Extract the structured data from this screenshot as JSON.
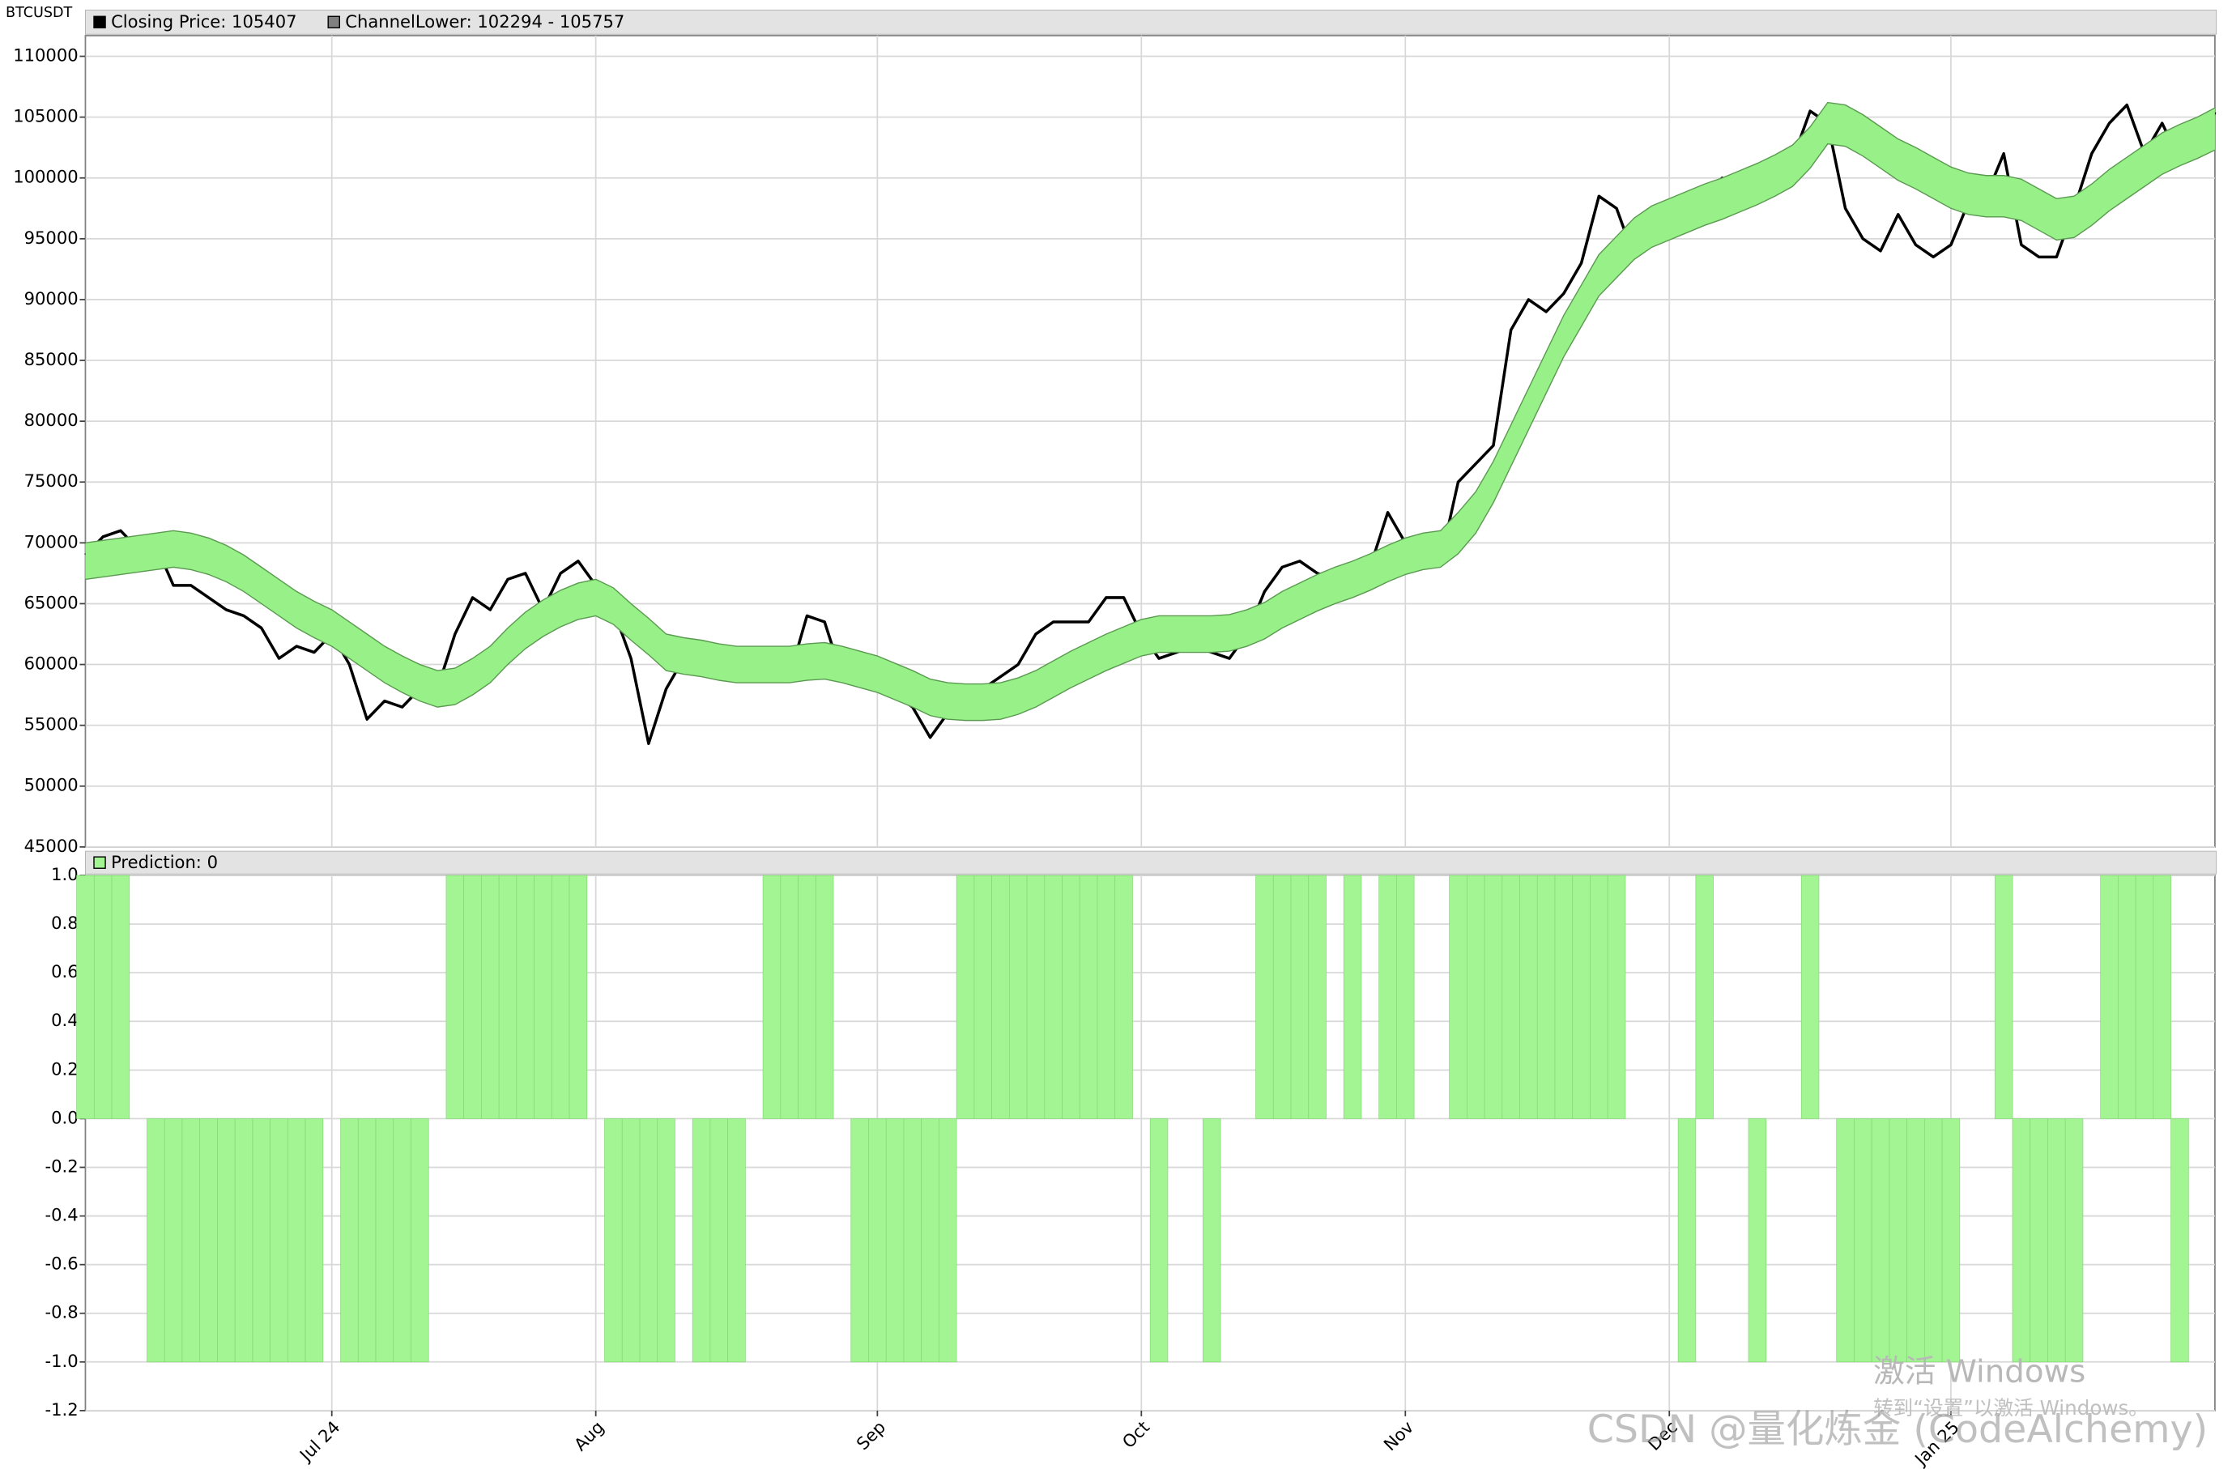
{
  "chart_data": [
    {
      "type": "line",
      "title": "BTCUSDT",
      "series": [
        {
          "name": "Closing Price: 105407",
          "color": "#000000",
          "values": [
            69000,
            70500,
            71000,
            69500,
            69800,
            66500,
            66500,
            65500,
            64500,
            64000,
            63000,
            60500,
            61500,
            61000,
            62500,
            60000,
            55500,
            57000,
            56500,
            58000,
            58000,
            62500,
            65500,
            64500,
            67000,
            67500,
            64500,
            67500,
            68500,
            66500,
            64500,
            60500,
            53500,
            58000,
            60500,
            60000,
            59500,
            59000,
            59500,
            60000,
            59000,
            64000,
            63500,
            59000,
            59000,
            58500,
            57500,
            56500,
            54000,
            56000,
            57000,
            58000,
            59000,
            60000,
            62500,
            63500,
            63500,
            63500,
            65500,
            65500,
            62500,
            60500,
            61000,
            61500,
            61000,
            60500,
            62500,
            66000,
            68000,
            68500,
            67500,
            67000,
            67000,
            68000,
            72500,
            70000,
            69500,
            68500,
            75000,
            76500,
            78000,
            87500,
            90000,
            89000,
            90500,
            93000,
            98500,
            97500,
            93500,
            95500,
            97000,
            96500,
            98000,
            100000,
            99500,
            98000,
            99500,
            101500,
            105500,
            104500,
            97500,
            95000,
            94000,
            97000,
            94500,
            93500,
            94500,
            98000,
            98500,
            102000,
            94500,
            93500,
            93500,
            97500,
            102000,
            104500,
            106000,
            102000,
            104500,
            101500,
            102500,
            105407
          ]
        },
        {
          "name": "ChannelLower: 102294 - 105757",
          "color": "#98f088",
          "values": [
            67000,
            67200,
            67400,
            67600,
            67800,
            68000,
            67800,
            67400,
            66800,
            66000,
            65000,
            64000,
            63000,
            62200,
            61500,
            60500,
            59500,
            58500,
            57700,
            57000,
            56500,
            56700,
            57500,
            58500,
            60000,
            61300,
            62300,
            63100,
            63700,
            64000,
            63300,
            62000,
            60800,
            59500,
            59200,
            59000,
            58700,
            58500,
            58500,
            58500,
            58500,
            58700,
            58800,
            58500,
            58100,
            57700,
            57100,
            56500,
            55800,
            55500,
            55400,
            55400,
            55500,
            55900,
            56500,
            57300,
            58100,
            58800,
            59500,
            60100,
            60700,
            61000,
            61000,
            61000,
            61000,
            61100,
            61500,
            62100,
            63000,
            63700,
            64400,
            65000,
            65500,
            66100,
            66800,
            67400,
            67800,
            68000,
            69100,
            70800,
            73300,
            76300,
            79300,
            82300,
            85300,
            87800,
            90300,
            91800,
            93300,
            94300,
            94900,
            95500,
            96100,
            96600,
            97200,
            97800,
            98500,
            99300,
            100800,
            102800,
            102600,
            101800,
            100800,
            99800,
            99100,
            98300,
            97500,
            97000,
            96800,
            96800,
            96500,
            95700,
            94900,
            95100,
            96100,
            97300,
            98300,
            99300,
            100300,
            101000,
            101600,
            102294
          ],
          "upper": [
            70000,
            70200,
            70400,
            70600,
            70800,
            71000,
            70800,
            70400,
            69800,
            69000,
            68000,
            67000,
            66000,
            65200,
            64500,
            63500,
            62500,
            61500,
            60700,
            60000,
            59500,
            59700,
            60500,
            61500,
            63000,
            64300,
            65300,
            66100,
            66700,
            67000,
            66300,
            65000,
            63800,
            62500,
            62200,
            62000,
            61700,
            61500,
            61500,
            61500,
            61500,
            61700,
            61800,
            61500,
            61100,
            60700,
            60100,
            59500,
            58800,
            58500,
            58400,
            58400,
            58500,
            58900,
            59500,
            60300,
            61100,
            61800,
            62500,
            63100,
            63700,
            64000,
            64000,
            64000,
            64000,
            64100,
            64500,
            65100,
            66000,
            66700,
            67400,
            68000,
            68500,
            69100,
            69800,
            70400,
            70800,
            71000,
            72500,
            74200,
            76700,
            79700,
            82700,
            85700,
            88700,
            91200,
            93700,
            95200,
            96700,
            97700,
            98300,
            98900,
            99500,
            100000,
            100600,
            101200,
            101900,
            102700,
            104200,
            106200,
            106000,
            105200,
            104200,
            103200,
            102500,
            101700,
            100900,
            100400,
            100200,
            100200,
            99900,
            99100,
            98300,
            98500,
            99500,
            100700,
            101700,
            102700,
            103700,
            104400,
            105000,
            105757
          ]
        }
      ],
      "ylim": [
        45000,
        111700
      ],
      "yticks": [
        45000,
        50000,
        55000,
        60000,
        65000,
        70000,
        75000,
        80000,
        85000,
        90000,
        95000,
        100000,
        105000,
        110000
      ],
      "grid": true
    },
    {
      "type": "bar",
      "categories": [
        null,
        null,
        null,
        null,
        null,
        null,
        null,
        null,
        null,
        null,
        null,
        null,
        null,
        null,
        "Jul 24",
        null,
        null,
        null,
        null,
        null,
        null,
        null,
        null,
        null,
        null,
        null,
        null,
        null,
        null,
        "Aug",
        null,
        null,
        null,
        null,
        null,
        null,
        null,
        null,
        null,
        null,
        null,
        null,
        null,
        null,
        null,
        "Sep",
        null,
        null,
        null,
        null,
        null,
        null,
        null,
        null,
        null,
        null,
        null,
        null,
        null,
        null,
        "Oct",
        null,
        null,
        null,
        null,
        null,
        null,
        null,
        null,
        null,
        null,
        null,
        null,
        null,
        null,
        "Nov",
        null,
        null,
        null,
        null,
        null,
        null,
        null,
        null,
        null,
        null,
        null,
        null,
        null,
        null,
        "Dec",
        null,
        null,
        null,
        null,
        null,
        null,
        null,
        null,
        null,
        null,
        null,
        null,
        null,
        null,
        null,
        "Jan 25",
        null,
        null,
        null,
        null,
        null,
        null,
        null,
        null,
        null,
        null,
        null,
        null,
        null,
        null,
        null
      ],
      "series": [
        {
          "name": "Prediction: 0",
          "color": "#a2f592",
          "values": [
            1,
            1,
            1,
            0,
            -1,
            -1,
            -1,
            -1,
            -1,
            -1,
            -1,
            -1,
            -1,
            -1,
            0,
            -1,
            -1,
            -1,
            -1,
            -1,
            0,
            1,
            1,
            1,
            1,
            1,
            1,
            1,
            1,
            0,
            -1,
            -1,
            -1,
            -1,
            0,
            -1,
            -1,
            -1,
            0,
            1,
            1,
            1,
            1,
            0,
            -1,
            -1,
            -1,
            -1,
            -1,
            -1,
            1,
            1,
            1,
            1,
            1,
            1,
            1,
            1,
            1,
            1,
            0,
            -1,
            0,
            0,
            -1,
            0,
            0,
            1,
            1,
            1,
            1,
            0,
            1,
            0,
            1,
            1,
            0,
            0,
            1,
            1,
            1,
            1,
            1,
            1,
            1,
            1,
            1,
            1,
            0,
            0,
            0,
            -1,
            1,
            0,
            0,
            -1,
            0,
            0,
            1,
            0,
            -1,
            -1,
            -1,
            -1,
            -1,
            -1,
            -1,
            0,
            0,
            1,
            -1,
            -1,
            -1,
            -1,
            0,
            1,
            1,
            1,
            1,
            -1,
            0,
            0
          ]
        }
      ],
      "ylim": [
        -1.2,
        1.0
      ],
      "yticks": [
        {
          "value": 1.0,
          "label": "1.0"
        },
        0.8,
        0.6,
        0.4,
        0.2,
        {
          "value": 0,
          "label": "0.0"
        },
        -0.2,
        -0.4,
        -0.6,
        -0.8,
        {
          "value": -1.0,
          "label": "-1.0"
        },
        -1.2
      ],
      "grid": true
    }
  ],
  "watermarks": [
    "激活 Windows",
    "转到“设置”以激活 Windows。",
    "CSDN @量化炼金 (CodeAlchemy)"
  ]
}
